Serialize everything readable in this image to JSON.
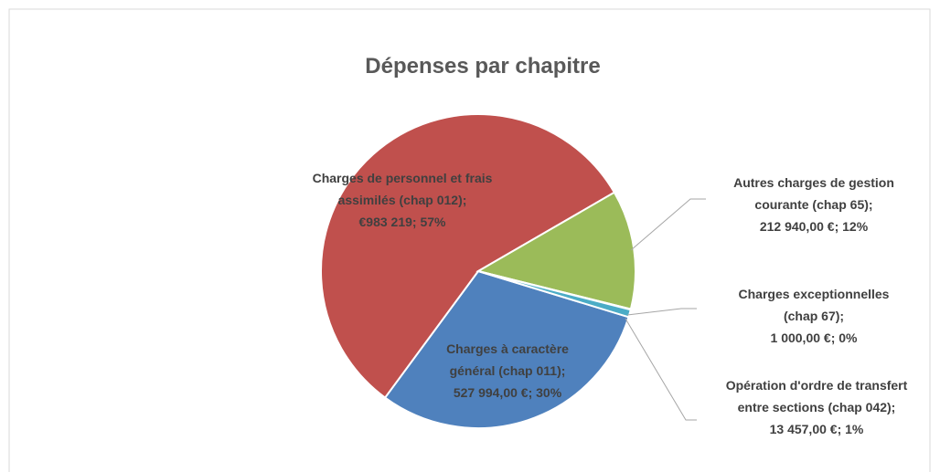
{
  "chart_data": {
    "type": "pie",
    "title": "Dépenses par chapitre",
    "categories": [
      "Charges à caractère général (chap 011);",
      "Charges de personnel et frais assimilés (chap 012);",
      "Autres charges de gestion courante (chap 65);",
      "Charges exceptionnelles (chap 67);",
      "Opération d'ordre de transfert entre sections (chap 042);"
    ],
    "values": [
      527994,
      983219,
      212940,
      1000,
      13457
    ],
    "value_labels": [
      "527 994,00 €",
      "€983 219",
      "212 940,00 €",
      "1 000,00 €",
      "13 457,00 €"
    ],
    "percents": [
      30,
      57,
      12,
      0,
      1
    ],
    "percent_labels": [
      "; 30%",
      "; 57%",
      "; 12%",
      "; 0%",
      "; 1%"
    ],
    "colors": [
      "#4f81bd",
      "#c0504d",
      "#9bbb59",
      "#8064a2",
      "#4bacc6"
    ]
  }
}
